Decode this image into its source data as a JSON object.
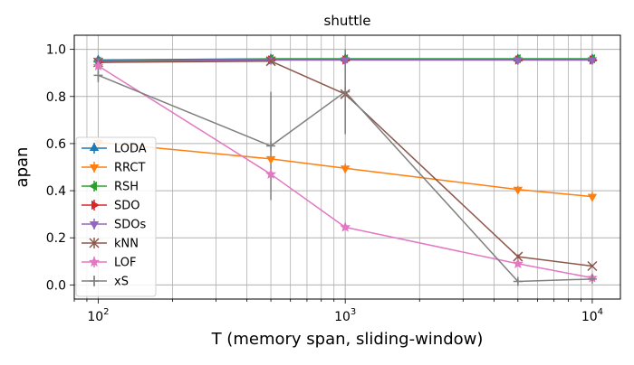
{
  "chart_data": {
    "type": "line",
    "title": "shuttle",
    "xlabel": "T (memory span, sliding-window)",
    "ylabel": "apan",
    "x_scale": "log",
    "xlim": [
      80,
      13000
    ],
    "ylim": [
      -0.06,
      1.06
    ],
    "x": [
      100,
      500,
      1000,
      5000,
      10000
    ],
    "x_tick_labels": [
      "10^2",
      "10^3",
      "10^4"
    ],
    "y_ticks": [
      0.0,
      0.2,
      0.4,
      0.6,
      0.8,
      1.0
    ],
    "y_tick_labels": [
      "0.0",
      "0.2",
      "0.4",
      "0.6",
      "0.8",
      "1.0"
    ],
    "grid": true,
    "legend_position": "left",
    "series": [
      {
        "name": "LODA",
        "color": "#1f77b4",
        "marker": "tri_up",
        "values": [
          0.955,
          0.96,
          0.96,
          0.96,
          0.96
        ],
        "err": [
          0.005,
          0.005,
          0.005,
          0.005,
          0.005
        ]
      },
      {
        "name": "RRCT",
        "color": "#ff7f0e",
        "marker": "tri_down",
        "values": [
          0.605,
          0.535,
          0.495,
          0.405,
          0.375
        ],
        "err": [
          0.01,
          0.01,
          0.02,
          0.015,
          0.02
        ]
      },
      {
        "name": "RSH",
        "color": "#2ca02c",
        "marker": "tri_left",
        "values": [
          0.95,
          0.96,
          0.96,
          0.96,
          0.96
        ],
        "err": [
          0.005,
          0.005,
          0.005,
          0.005,
          0.005
        ]
      },
      {
        "name": "SDO",
        "color": "#d62728",
        "marker": "tri_right",
        "values": [
          0.945,
          0.955,
          0.955,
          0.955,
          0.955
        ],
        "err": [
          0.005,
          0.005,
          0.005,
          0.005,
          0.005
        ]
      },
      {
        "name": "SDOs",
        "color": "#9467bd",
        "marker": "triangle_down",
        "values": [
          0.95,
          0.955,
          0.955,
          0.955,
          0.955
        ],
        "err": [
          0.005,
          0.005,
          0.005,
          0.005,
          0.005
        ]
      },
      {
        "name": "kNN",
        "color": "#8c564b",
        "marker": "x",
        "values": [
          0.945,
          0.95,
          0.81,
          0.12,
          0.08
        ],
        "err": [
          0.005,
          0.005,
          0.01,
          0.01,
          0.005
        ]
      },
      {
        "name": "LOF",
        "color": "#e377c2",
        "marker": "star",
        "values": [
          0.93,
          0.47,
          0.245,
          0.09,
          0.03
        ],
        "err": [
          0.01,
          0.01,
          0.01,
          0.005,
          0.005
        ]
      },
      {
        "name": "xS",
        "color": "#7f7f7f",
        "marker": "plus",
        "values": [
          0.89,
          0.59,
          0.82,
          0.015,
          0.025
        ],
        "err": [
          0.03,
          0.23,
          0.18,
          0.01,
          0.01
        ]
      }
    ]
  }
}
